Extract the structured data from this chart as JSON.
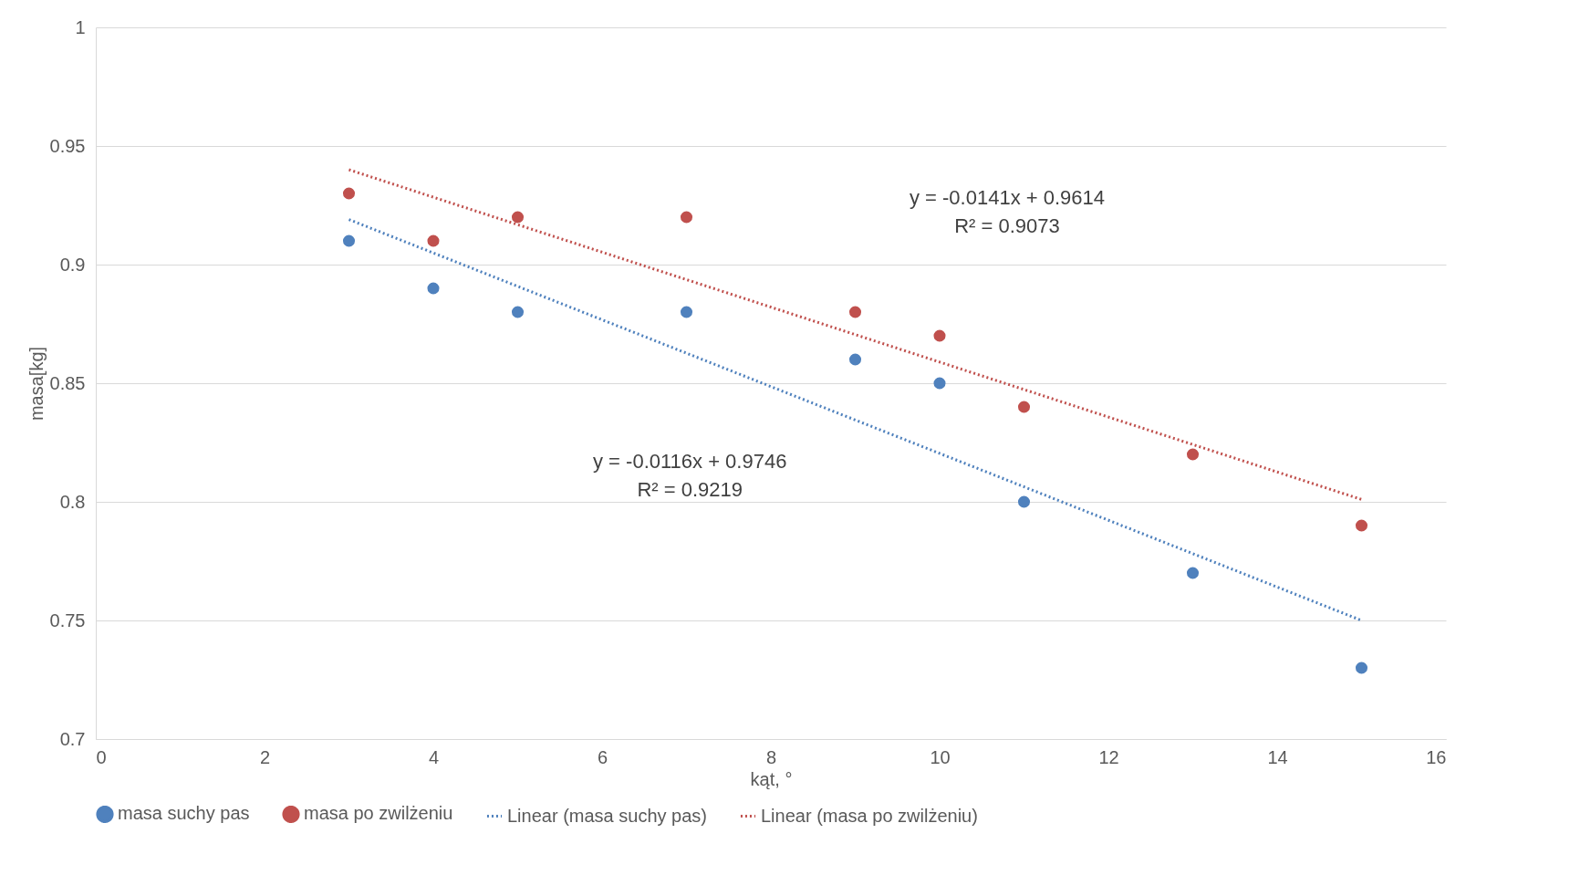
{
  "chart_data": {
    "type": "scatter",
    "xlabel": "kąt, °",
    "ylabel": "masa[kg]",
    "xlim": [
      0,
      16
    ],
    "xticks": [
      0,
      2,
      4,
      6,
      8,
      10,
      12,
      14,
      16
    ],
    "ylim": [
      0.7,
      1
    ],
    "yticks": [
      0.7,
      0.75,
      0.8,
      0.85,
      0.9,
      0.95,
      1
    ],
    "grid": "y",
    "legend": "bottom",
    "series": [
      {
        "name": "masa suchy pas",
        "type": "scatter",
        "marker": "circle",
        "color": "#4f81bd",
        "x": [
          3,
          4,
          5,
          7,
          9,
          10,
          11,
          13,
          15
        ],
        "values": [
          0.91,
          0.89,
          0.88,
          0.88,
          0.86,
          0.85,
          0.8,
          0.77,
          0.73
        ]
      },
      {
        "name": "masa po zwilżeniu",
        "type": "scatter",
        "marker": "circle",
        "color": "#c0504d",
        "x": [
          3,
          4,
          5,
          7,
          9,
          10,
          11,
          13,
          15
        ],
        "values": [
          0.93,
          0.91,
          0.92,
          0.92,
          0.88,
          0.87,
          0.84,
          0.82,
          0.79
        ]
      },
      {
        "name": "Linear (masa suchy pas)",
        "type": "line",
        "marker": "none",
        "line_style": "dotted",
        "color": "#4f81bd",
        "x": [
          3,
          15
        ],
        "values": [
          0.919,
          0.75
        ]
      },
      {
        "name": "Linear (masa po zwilżeniu)",
        "type": "line",
        "marker": "none",
        "line_style": "dotted",
        "color": "#c0504d",
        "x": [
          3,
          15
        ],
        "values": [
          0.94,
          0.801
        ]
      }
    ],
    "annotations": [
      "y = -0.0141x + 0.9614",
      "R² = 0.9073",
      "y = -0.0116x + 0.9746",
      "R² = 0.9219"
    ]
  }
}
